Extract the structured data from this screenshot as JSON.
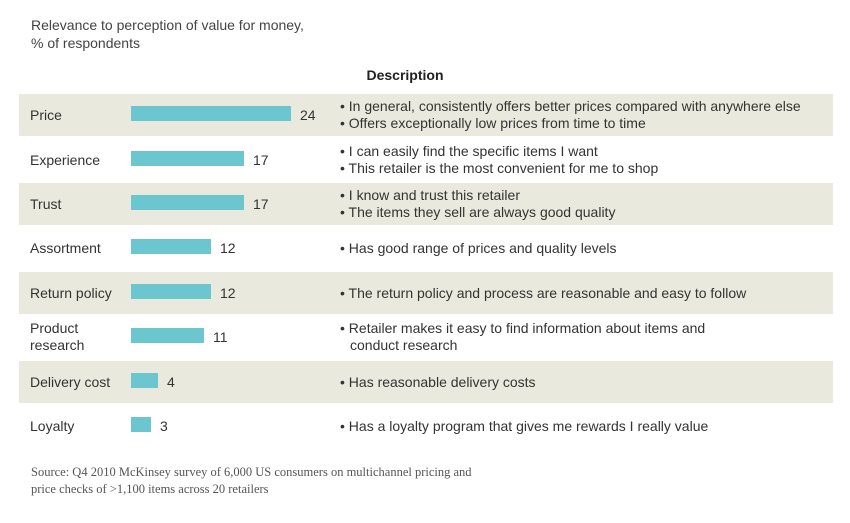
{
  "header": {
    "subtitle_line1": "Relevance to perception of value for money,",
    "subtitle_line2": "% of respondents",
    "description_heading": "Description"
  },
  "chart_data": {
    "type": "bar",
    "orientation": "horizontal",
    "title": "",
    "ylabel": "Relevance to perception of value for money, % of respondents",
    "categories": [
      "Price",
      "Experience",
      "Trust",
      "Assortment",
      "Return policy",
      "Product research",
      "Delivery cost",
      "Loyalty"
    ],
    "values": [
      24,
      17,
      17,
      12,
      12,
      11,
      4,
      3
    ],
    "xlim": [
      0,
      24
    ],
    "grid": false,
    "bar_color": "#6bc6cf",
    "row_shading_color": "#e9e9dd"
  },
  "rows": [
    {
      "label": "Price",
      "value": "24",
      "desc": [
        "• In general, consistently offers better prices compared with anywhere else",
        "• Offers exceptionally low prices from time to time"
      ]
    },
    {
      "label": "Experience",
      "value": "17",
      "desc": [
        "• I can easily find the specific items I want",
        "• This retailer is the most convenient for me to shop"
      ]
    },
    {
      "label": "Trust",
      "value": "17",
      "desc": [
        "• I know and trust this retailer",
        "• The items they sell are always good quality"
      ]
    },
    {
      "label": "Assortment",
      "value": "12",
      "desc": [
        "• Has good range of prices and quality levels"
      ]
    },
    {
      "label": "Return policy",
      "value": "12",
      "desc": [
        "• The return policy and process are reasonable and easy to follow"
      ]
    },
    {
      "label": "Product\nresearch",
      "value": "11",
      "desc": [
        "• Retailer makes it easy to find information about items and",
        "conduct research"
      ]
    },
    {
      "label": "Delivery cost",
      "value": "4",
      "desc": [
        "• Has reasonable delivery costs"
      ]
    },
    {
      "label": "Loyalty",
      "value": "3",
      "desc": [
        "• Has a loyalty program that gives me rewards I really value"
      ]
    }
  ],
  "source": {
    "line1": "Source: Q4 2010 McKinsey survey of 6,000 US consumers on multichannel pricing and",
    "line2": "price checks of >1,100 items across 20 retailers"
  }
}
